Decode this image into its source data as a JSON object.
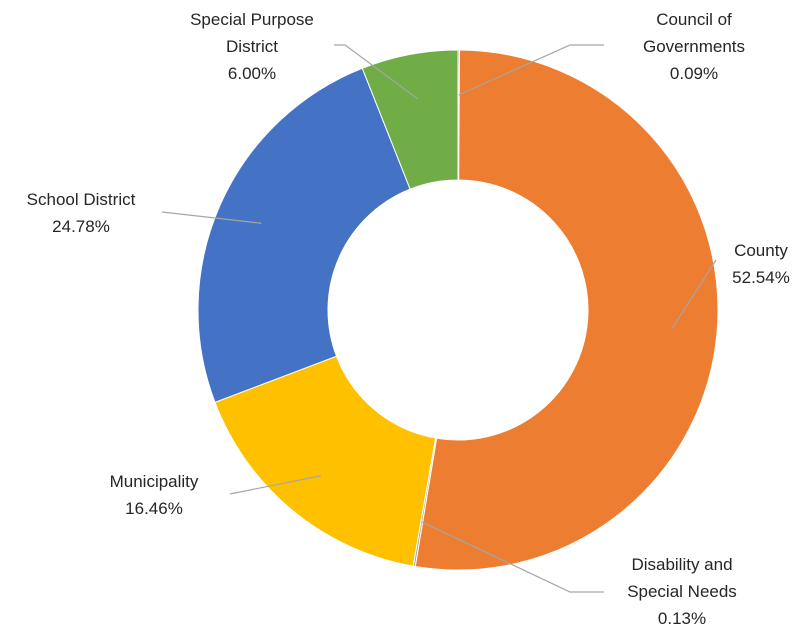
{
  "chart_data": {
    "type": "pie",
    "variant": "donut",
    "title": "",
    "legend": "none",
    "categories": [
      "Council of Governments",
      "County",
      "Disability and Special Needs",
      "Municipality",
      "School District",
      "Special Purpose District"
    ],
    "values": [
      0.09,
      52.54,
      0.13,
      16.46,
      24.78,
      6.0
    ],
    "value_labels": [
      "0.09%",
      "52.54%",
      "0.13%",
      "16.46%",
      "24.78%",
      "6.00%"
    ],
    "label_lines": [
      [
        "Council of",
        "Governments"
      ],
      [
        "County"
      ],
      [
        "Disability and",
        "Special Needs"
      ],
      [
        "Municipality"
      ],
      [
        "School District"
      ],
      [
        "Special Purpose",
        "District"
      ]
    ],
    "colors": [
      "#A5A5A5",
      "#ED7D31",
      "#A5A5A5",
      "#FFC000",
      "#4472C4",
      "#70AD47"
    ],
    "slice_names": [
      "slice-council-of-governments",
      "slice-county",
      "slice-disability-and-special-needs",
      "slice-municipality",
      "slice-school-district",
      "slice-special-purpose-district"
    ]
  }
}
